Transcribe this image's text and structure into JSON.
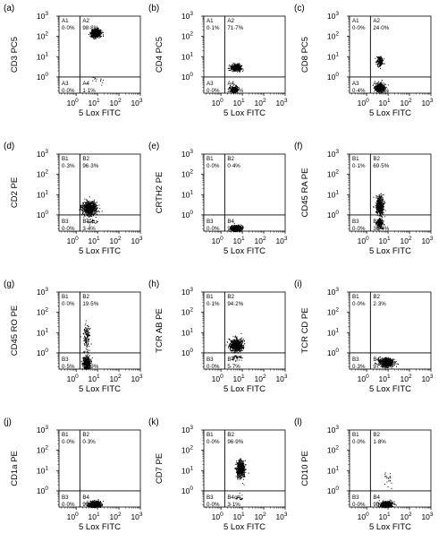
{
  "chart_data": [
    {
      "type": "scatter",
      "panel": "(a)",
      "ylabel": "CD3 PC5",
      "xlabel": "5 Lox FITC",
      "x_ticks": [
        "10",
        "10",
        "10",
        "10"
      ],
      "x_exps": [
        "0",
        "1",
        "2",
        "3"
      ],
      "y_ticks": [
        "10",
        "10",
        "10",
        "10"
      ],
      "y_exps": [
        "0",
        "1",
        "2",
        "3"
      ],
      "quadrant_gate": {
        "x": 1.5,
        "y": 1.0
      },
      "quadrants": [
        {
          "label": "A1",
          "value": "0·0%"
        },
        {
          "label": "A2",
          "value": "98·8%"
        },
        {
          "label": "A3",
          "value": "0·0%"
        },
        {
          "label": "A4",
          "value": "1·1%"
        }
      ],
      "populations": [
        {
          "cx": 8,
          "cy": 150,
          "n": 620,
          "sx": 0.11,
          "sy": 0.1
        },
        {
          "cx": 9,
          "cy": 0.8,
          "n": 15,
          "sx": 0.15,
          "sy": 0.12
        }
      ]
    },
    {
      "type": "scatter",
      "panel": "(b)",
      "ylabel": "CD4 PC5",
      "xlabel": "5 Lox FITC",
      "x_ticks": [
        "10",
        "10",
        "10",
        "10"
      ],
      "x_exps": [
        "0",
        "1",
        "2",
        "3"
      ],
      "y_ticks": [
        "10",
        "10",
        "10",
        "10"
      ],
      "y_exps": [
        "0",
        "1",
        "2",
        "3"
      ],
      "quadrant_gate": {
        "x": 1.5,
        "y": 1.0
      },
      "quadrants": [
        {
          "label": "A1",
          "value": "0·1%"
        },
        {
          "label": "A2",
          "value": "71·7%"
        },
        {
          "label": "A3",
          "value": "0·0%"
        },
        {
          "label": "A4",
          "value": "28·2%"
        }
      ],
      "populations": [
        {
          "cx": 5,
          "cy": 3,
          "n": 470,
          "sx": 0.12,
          "sy": 0.08
        },
        {
          "cx": 4,
          "cy": 0.25,
          "n": 190,
          "sx": 0.1,
          "sy": 0.09
        }
      ]
    },
    {
      "type": "scatter",
      "panel": "(c)",
      "ylabel": "CD8 PC5",
      "xlabel": "5 Lox FITC",
      "x_ticks": [
        "10",
        "10",
        "10",
        "10"
      ],
      "x_exps": [
        "0",
        "1",
        "2",
        "3"
      ],
      "y_ticks": [
        "10",
        "10",
        "10",
        "10"
      ],
      "y_exps": [
        "0",
        "1",
        "2",
        "3"
      ],
      "quadrant_gate": {
        "x": 1.5,
        "y": 1.0
      },
      "quadrants": [
        {
          "label": "A1",
          "value": "0·0%"
        },
        {
          "label": "A2",
          "value": "24·0%"
        },
        {
          "label": "A3",
          "value": "0·4%"
        },
        {
          "label": "A4",
          "value": "75·6%"
        }
      ],
      "populations": [
        {
          "cx": 4,
          "cy": 6,
          "n": 170,
          "sx": 0.08,
          "sy": 0.12
        },
        {
          "cx": 4,
          "cy": 0.3,
          "n": 480,
          "sx": 0.11,
          "sy": 0.1
        }
      ]
    },
    {
      "type": "scatter",
      "panel": "(d)",
      "ylabel": "CD2 PE",
      "xlabel": "5 Lox FITC",
      "x_ticks": [
        "10",
        "10",
        "10",
        "10"
      ],
      "x_exps": [
        "0",
        "1",
        "2",
        "3"
      ],
      "y_ticks": [
        "10",
        "10",
        "10",
        "10"
      ],
      "y_exps": [
        "0",
        "1",
        "2",
        "3"
      ],
      "quadrant_gate": {
        "x": 1.5,
        "y": 1.0
      },
      "quadrants": [
        {
          "label": "B1",
          "value": "0·3%"
        },
        {
          "label": "B2",
          "value": "96·3%"
        },
        {
          "label": "B3",
          "value": "0·0%"
        },
        {
          "label": "B4",
          "value": "3·4%"
        }
      ],
      "populations": [
        {
          "cx": 4,
          "cy": 2.2,
          "n": 800,
          "sx": 0.16,
          "sy": 0.16
        },
        {
          "cx": 5,
          "cy": 0.5,
          "n": 30,
          "sx": 0.12,
          "sy": 0.08
        }
      ]
    },
    {
      "type": "scatter",
      "panel": "(e)",
      "ylabel": "CRTH2 PE",
      "xlabel": "5 Lox FITC",
      "x_ticks": [
        "10",
        "10",
        "10",
        "10"
      ],
      "x_exps": [
        "0",
        "1",
        "2",
        "3"
      ],
      "y_ticks": [
        "10",
        "10",
        "10",
        "10"
      ],
      "y_exps": [
        "0",
        "1",
        "2",
        "3"
      ],
      "quadrant_gate": {
        "x": 1.5,
        "y": 1.0
      },
      "quadrants": [
        {
          "label": "B1",
          "value": "0·0%"
        },
        {
          "label": "B2",
          "value": "0·4%"
        },
        {
          "label": "B3",
          "value": "0·0%"
        },
        {
          "label": "B4",
          "value": "99·6%"
        }
      ],
      "populations": [
        {
          "cx": 5,
          "cy": 0.22,
          "n": 520,
          "sx": 0.12,
          "sy": 0.08
        }
      ]
    },
    {
      "type": "scatter",
      "panel": "(f)",
      "ylabel": "CD45 RA PE",
      "xlabel": "5 Lox FITC",
      "x_ticks": [
        "10",
        "10",
        "10",
        "10"
      ],
      "x_exps": [
        "0",
        "1",
        "2",
        "3"
      ],
      "y_ticks": [
        "10",
        "10",
        "10",
        "10"
      ],
      "y_exps": [
        "0",
        "1",
        "2",
        "3"
      ],
      "quadrant_gate": {
        "x": 1.5,
        "y": 1.0
      },
      "quadrants": [
        {
          "label": "B1",
          "value": "0·1%"
        },
        {
          "label": "B2",
          "value": "69·5%"
        },
        {
          "label": "B3",
          "value": "0·0%"
        },
        {
          "label": "B4",
          "value": "30·4%"
        }
      ],
      "populations": [
        {
          "cx": 4,
          "cy": 3,
          "n": 480,
          "sx": 0.09,
          "sy": 0.22
        },
        {
          "cx": 4,
          "cy": 0.4,
          "n": 190,
          "sx": 0.08,
          "sy": 0.13
        }
      ]
    },
    {
      "type": "scatter",
      "panel": "(g)",
      "ylabel": "CD45 RO PE",
      "xlabel": "5 Lox FITC",
      "x_ticks": [
        "10",
        "10",
        "10",
        "10"
      ],
      "x_exps": [
        "0",
        "1",
        "2",
        "3"
      ],
      "y_ticks": [
        "10",
        "10",
        "10",
        "10"
      ],
      "y_exps": [
        "0",
        "1",
        "2",
        "3"
      ],
      "quadrant_gate": {
        "x": 1.5,
        "y": 1.0
      },
      "quadrants": [
        {
          "label": "B1",
          "value": "0·0%"
        },
        {
          "label": "B2",
          "value": "19·5%"
        },
        {
          "label": "B3",
          "value": "0·5%"
        },
        {
          "label": "B4",
          "value": "79·9%"
        }
      ],
      "populations": [
        {
          "cx": 3,
          "cy": 6,
          "n": 140,
          "sx": 0.07,
          "sy": 0.3
        },
        {
          "cx": 3,
          "cy": 0.3,
          "n": 520,
          "sx": 0.08,
          "sy": 0.17
        }
      ]
    },
    {
      "type": "scatter",
      "panel": "(h)",
      "ylabel": "TCR AB PE",
      "xlabel": "5 Lox FITC",
      "x_ticks": [
        "10",
        "10",
        "10",
        "10"
      ],
      "x_exps": [
        "0",
        "1",
        "2",
        "3"
      ],
      "y_ticks": [
        "10",
        "10",
        "10",
        "10"
      ],
      "y_exps": [
        "0",
        "1",
        "2",
        "3"
      ],
      "quadrant_gate": {
        "x": 1.5,
        "y": 1.0
      },
      "quadrants": [
        {
          "label": "B1",
          "value": "0·1%"
        },
        {
          "label": "B2",
          "value": "94·2%"
        },
        {
          "label": "B3",
          "value": "0·0%"
        },
        {
          "label": "B4",
          "value": "5·7%"
        }
      ],
      "populations": [
        {
          "cx": 5,
          "cy": 2.5,
          "n": 700,
          "sx": 0.15,
          "sy": 0.15
        },
        {
          "cx": 5,
          "cy": 0.6,
          "n": 40,
          "sx": 0.12,
          "sy": 0.08
        }
      ]
    },
    {
      "type": "scatter",
      "panel": "(i)",
      "ylabel": "TCR CD PE",
      "xlabel": "5 Lox FITC",
      "x_ticks": [
        "10",
        "10",
        "10",
        "10"
      ],
      "x_exps": [
        "0",
        "1",
        "2",
        "3"
      ],
      "y_ticks": [
        "10",
        "10",
        "10",
        "10"
      ],
      "y_exps": [
        "0",
        "1",
        "2",
        "3"
      ],
      "quadrant_gate": {
        "x": 1.5,
        "y": 1.0
      },
      "quadrants": [
        {
          "label": "B1",
          "value": "0·0%"
        },
        {
          "label": "B2",
          "value": "2·3%"
        },
        {
          "label": "B3",
          "value": "0·3%"
        },
        {
          "label": "B4",
          "value": "97·4%"
        }
      ],
      "populations": [
        {
          "cx": 8,
          "cy": 0.35,
          "n": 720,
          "sx": 0.16,
          "sy": 0.1
        }
      ]
    },
    {
      "type": "scatter",
      "panel": "(j)",
      "ylabel": "CD1a PE",
      "xlabel": "5 Lox FITC",
      "x_ticks": [
        "10",
        "10",
        "10",
        "10"
      ],
      "x_exps": [
        "0",
        "1",
        "2",
        "3"
      ],
      "y_ticks": [
        "10",
        "10",
        "10",
        "10"
      ],
      "y_exps": [
        "0",
        "1",
        "2",
        "3"
      ],
      "quadrant_gate": {
        "x": 1.5,
        "y": 1.0
      },
      "quadrants": [
        {
          "label": "B1",
          "value": "0·0%"
        },
        {
          "label": "B2",
          "value": "0·3%"
        },
        {
          "label": "B3",
          "value": "0·0%"
        },
        {
          "label": "B4",
          "value": "99·7%"
        }
      ],
      "populations": [
        {
          "cx": 7,
          "cy": 0.22,
          "n": 620,
          "sx": 0.14,
          "sy": 0.08
        }
      ]
    },
    {
      "type": "scatter",
      "panel": "(k)",
      "ylabel": "CD7 PE",
      "xlabel": "5 Lox FITC",
      "x_ticks": [
        "10",
        "10",
        "10",
        "10"
      ],
      "x_exps": [
        "0",
        "1",
        "2",
        "3"
      ],
      "y_ticks": [
        "10",
        "10",
        "10",
        "10"
      ],
      "y_exps": [
        "0",
        "1",
        "2",
        "3"
      ],
      "quadrant_gate": {
        "x": 1.5,
        "y": 1.0
      },
      "quadrants": [
        {
          "label": "B1",
          "value": "0·0%"
        },
        {
          "label": "B2",
          "value": "96·9%"
        },
        {
          "label": "B3",
          "value": "0·0%"
        },
        {
          "label": "B4",
          "value": "3·1%"
        }
      ],
      "populations": [
        {
          "cx": 8,
          "cy": 12,
          "n": 620,
          "sx": 0.1,
          "sy": 0.2
        },
        {
          "cx": 7,
          "cy": 0.5,
          "n": 25,
          "sx": 0.12,
          "sy": 0.08
        }
      ]
    },
    {
      "type": "scatter",
      "panel": "(l)",
      "ylabel": "CD10 PE",
      "xlabel": "5 Lox FITC",
      "x_ticks": [
        "10",
        "10",
        "10",
        "10"
      ],
      "x_exps": [
        "0",
        "1",
        "2",
        "3"
      ],
      "y_ticks": [
        "10",
        "10",
        "10",
        "10"
      ],
      "y_exps": [
        "0",
        "1",
        "2",
        "3"
      ],
      "quadrant_gate": {
        "x": 1.5,
        "y": 1.0
      },
      "quadrants": [
        {
          "label": "B1",
          "value": "0·0%"
        },
        {
          "label": "B2",
          "value": "1·8%"
        },
        {
          "label": "B3",
          "value": "0·0%"
        },
        {
          "label": "B4",
          "value": "98·2%"
        }
      ],
      "populations": [
        {
          "cx": 8,
          "cy": 0.22,
          "n": 580,
          "sx": 0.14,
          "sy": 0.08
        },
        {
          "cx": 9,
          "cy": 4,
          "n": 20,
          "sx": 0.12,
          "sy": 0.25
        }
      ]
    }
  ]
}
